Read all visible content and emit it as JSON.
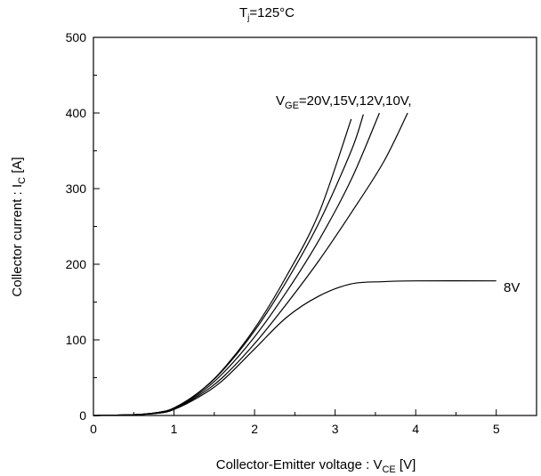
{
  "chart_data": {
    "type": "line",
    "title": {
      "main": "T",
      "sub": "j",
      "rest": "=125°C"
    },
    "xlabel": {
      "main": "Collector-Emitter voltage : V",
      "sub": "CE",
      "rest": " [V]"
    },
    "ylabel": {
      "main": "Collector current : I",
      "sub": "C",
      "rest": " [A]"
    },
    "xlim": [
      0,
      5.5
    ],
    "ylim": [
      0,
      500
    ],
    "x_ticks": [
      0,
      1,
      2,
      3,
      4,
      5
    ],
    "y_ticks": [
      0,
      100,
      200,
      300,
      400,
      500
    ],
    "x_tick_labels": [
      "0",
      "1",
      "2",
      "3",
      "4",
      "5"
    ],
    "y_tick_labels": [
      "0",
      "100",
      "200",
      "300",
      "400",
      "500"
    ],
    "grid": false,
    "annotations": {
      "group": {
        "main": "V",
        "sub": "GE",
        "rest": "=20V,15V,12V,10V,"
      },
      "single": "8V"
    },
    "series": [
      {
        "points": [
          [
            0,
            0
          ],
          [
            0.5,
            1
          ],
          [
            0.8,
            4
          ],
          [
            1,
            10
          ],
          [
            1.3,
            30
          ],
          [
            1.6,
            60
          ],
          [
            2,
            115
          ],
          [
            2.4,
            185
          ],
          [
            2.8,
            268
          ],
          [
            3.2,
            392
          ]
        ]
      },
      {
        "points": [
          [
            0,
            0
          ],
          [
            0.5,
            1
          ],
          [
            0.8,
            4
          ],
          [
            1,
            10
          ],
          [
            1.3,
            30
          ],
          [
            1.6,
            59
          ],
          [
            2,
            112
          ],
          [
            2.4,
            178
          ],
          [
            2.8,
            255
          ],
          [
            3.2,
            350
          ],
          [
            3.35,
            398
          ]
        ]
      },
      {
        "points": [
          [
            0,
            0
          ],
          [
            0.5,
            1
          ],
          [
            0.8,
            4
          ],
          [
            1,
            9
          ],
          [
            1.3,
            28
          ],
          [
            1.6,
            55
          ],
          [
            2,
            104
          ],
          [
            2.4,
            164
          ],
          [
            2.8,
            232
          ],
          [
            3.2,
            312
          ],
          [
            3.55,
            400
          ]
        ]
      },
      {
        "points": [
          [
            0,
            0
          ],
          [
            0.5,
            1
          ],
          [
            0.8,
            3
          ],
          [
            1,
            8
          ],
          [
            1.3,
            26
          ],
          [
            1.6,
            50
          ],
          [
            2,
            95
          ],
          [
            2.4,
            148
          ],
          [
            2.8,
            205
          ],
          [
            3.2,
            268
          ],
          [
            3.6,
            335
          ],
          [
            3.9,
            400
          ]
        ]
      },
      {
        "points": [
          [
            0,
            0
          ],
          [
            0.5,
            1
          ],
          [
            0.8,
            3
          ],
          [
            1,
            8
          ],
          [
            1.3,
            24
          ],
          [
            1.6,
            46
          ],
          [
            2,
            88
          ],
          [
            2.4,
            130
          ],
          [
            2.8,
            158
          ],
          [
            3.2,
            174
          ],
          [
            3.6,
            177
          ],
          [
            4,
            178
          ],
          [
            5,
            178
          ]
        ]
      }
    ]
  }
}
